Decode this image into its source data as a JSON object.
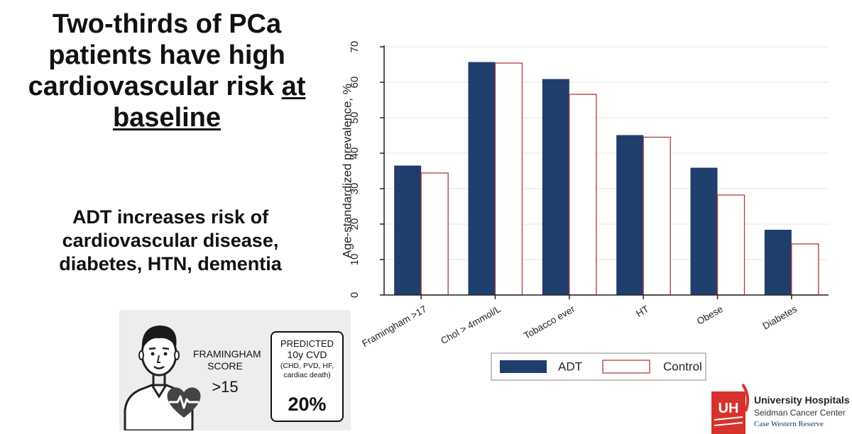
{
  "headline": {
    "line1": "Two-thirds of PCa",
    "line2": "patients have high",
    "line3_before": "cardiovascular risk ",
    "line3_underlined": "at",
    "line4_underlined": "baseline"
  },
  "subheadline": {
    "line1": "ADT increases risk of",
    "line2": "cardiovascular disease,",
    "line3": "diabetes, HTN, dementia"
  },
  "framingham_card": {
    "score_label_1": "FRAMINGHAM",
    "score_label_2": "SCORE",
    "score_value": ">15",
    "predicted_label_1": "PREDICTED",
    "predicted_label_2": "10y CVD",
    "predicted_label_3a": "(CHD, PVD, HF,",
    "predicted_label_3b": "cardiac death)",
    "predicted_value": "20%",
    "icons": [
      "man-avatar-icon",
      "heart-pulse-icon"
    ],
    "colors": {
      "heart": "#444444"
    }
  },
  "chart_data": {
    "type": "bar",
    "categories": [
      "Framingham >17",
      "Chol > 4mmol/L",
      "Tobacco ever",
      "HT",
      "Obese",
      "Diabetes"
    ],
    "series": [
      {
        "name": "ADT",
        "values": [
          36.5,
          65.7,
          60.9,
          45.1,
          35.9,
          18.4
        ],
        "color": "#1f3e6b"
      },
      {
        "name": "Control",
        "values": [
          34.4,
          65.4,
          56.6,
          44.5,
          28.2,
          14.4
        ],
        "color": "#ffffff",
        "stroke": "#b03a3a"
      }
    ],
    "title": "",
    "xlabel": "",
    "ylabel": "Age-standardized prevalence, %",
    "ylim": [
      0,
      70
    ],
    "yticks": [
      0,
      10,
      20,
      30,
      40,
      50,
      60,
      70
    ],
    "grid": true,
    "legend_position": "bottom"
  },
  "logo": {
    "mark": "UH",
    "name": "University Hospitals",
    "center": "Seidman Cancer Center",
    "university": "Case Western Reserve",
    "colors": {
      "primary": "#d6332c"
    }
  }
}
